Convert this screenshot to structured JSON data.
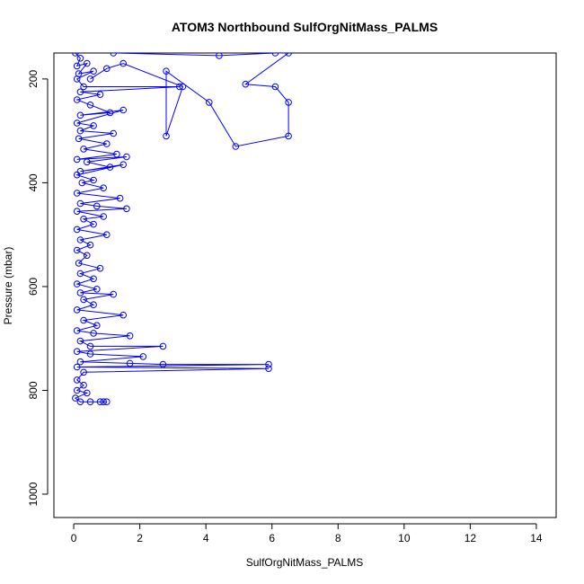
{
  "chart_data": {
    "type": "scatter",
    "title": "ATOM3 Northbound SulfOrgNitMass_PALMS",
    "xlabel": "SulfOrgNitMass_PALMS",
    "ylabel": "Pressure (mbar)",
    "xlim": [
      -0.6,
      14.6
    ],
    "ylim": [
      1045,
      150
    ],
    "y_inverted": true,
    "x_ticks": [
      0,
      2,
      4,
      6,
      8,
      10,
      12,
      14
    ],
    "y_ticks": [
      200,
      400,
      600,
      800,
      1000
    ],
    "grid": false,
    "color": "#0000ff",
    "marker": "open-circle",
    "connected": true,
    "series": [
      {
        "points": [
          [
            0.05,
            150
          ],
          [
            0.2,
            160
          ],
          [
            0.1,
            175
          ],
          [
            0.4,
            170
          ],
          [
            0.15,
            190
          ],
          [
            0.6,
            185
          ],
          [
            0.1,
            200
          ],
          [
            0.3,
            215
          ],
          [
            3.2,
            215
          ],
          [
            0.2,
            225
          ],
          [
            0.8,
            230
          ],
          [
            0.1,
            240
          ],
          [
            0.5,
            250
          ],
          [
            1.1,
            265
          ],
          [
            0.2,
            270
          ],
          [
            1.5,
            260
          ],
          [
            0.1,
            285
          ],
          [
            0.6,
            290
          ],
          [
            0.2,
            300
          ],
          [
            1.2,
            305
          ],
          [
            0.15,
            315
          ],
          [
            1.0,
            325
          ],
          [
            0.3,
            335
          ],
          [
            1.3,
            345
          ],
          [
            0.1,
            355
          ],
          [
            1.6,
            350
          ],
          [
            0.4,
            360
          ],
          [
            1.1,
            370
          ],
          [
            0.2,
            378
          ],
          [
            1.5,
            365
          ],
          [
            0.1,
            385
          ],
          [
            0.6,
            395
          ],
          [
            0.25,
            400
          ],
          [
            0.9,
            410
          ],
          [
            0.1,
            420
          ],
          [
            1.4,
            430
          ],
          [
            0.2,
            440
          ],
          [
            0.7,
            445
          ],
          [
            1.6,
            450
          ],
          [
            0.1,
            455
          ],
          [
            0.9,
            465
          ],
          [
            0.3,
            470
          ],
          [
            0.6,
            480
          ],
          [
            0.1,
            490
          ],
          [
            1.0,
            500
          ],
          [
            0.2,
            510
          ],
          [
            0.5,
            520
          ],
          [
            0.1,
            530
          ],
          [
            0.4,
            540
          ],
          [
            0.15,
            555
          ],
          [
            0.8,
            565
          ],
          [
            0.2,
            575
          ],
          [
            0.6,
            585
          ],
          [
            0.1,
            595
          ],
          [
            0.7,
            605
          ],
          [
            0.2,
            612
          ],
          [
            1.2,
            615
          ],
          [
            0.3,
            625
          ],
          [
            0.6,
            635
          ],
          [
            0.1,
            645
          ],
          [
            1.5,
            655
          ],
          [
            0.3,
            665
          ],
          [
            0.7,
            675
          ],
          [
            0.1,
            685
          ],
          [
            0.6,
            690
          ],
          [
            1.7,
            695
          ],
          [
            0.2,
            705
          ],
          [
            0.5,
            715
          ],
          [
            2.7,
            715
          ],
          [
            0.1,
            725
          ],
          [
            0.5,
            730
          ],
          [
            2.1,
            735
          ],
          [
            0.2,
            745
          ],
          [
            1.7,
            748
          ],
          [
            2.7,
            750
          ],
          [
            5.9,
            750
          ],
          [
            0.1,
            755
          ],
          [
            5.9,
            758
          ],
          [
            0.3,
            765
          ],
          [
            0.1,
            780
          ],
          [
            0.3,
            790
          ],
          [
            0.1,
            800
          ],
          [
            0.4,
            805
          ],
          [
            0.05,
            815
          ],
          [
            0.2,
            822
          ],
          [
            0.5,
            822
          ],
          [
            0.8,
            822
          ],
          [
            0.9,
            822
          ],
          [
            1.0,
            822
          ]
        ]
      },
      {
        "points": [
          [
            1.2,
            150
          ],
          [
            4.4,
            155
          ],
          [
            6.1,
            150
          ],
          [
            6.5,
            150
          ],
          [
            5.2,
            210
          ],
          [
            6.1,
            215
          ],
          [
            6.5,
            245
          ],
          [
            6.5,
            310
          ],
          [
            4.9,
            330
          ],
          [
            4.1,
            245
          ],
          [
            2.8,
            185
          ],
          [
            2.8,
            310
          ],
          [
            3.3,
            215
          ],
          [
            1.5,
            170
          ],
          [
            1.0,
            180
          ],
          [
            0.5,
            200
          ]
        ]
      }
    ]
  }
}
